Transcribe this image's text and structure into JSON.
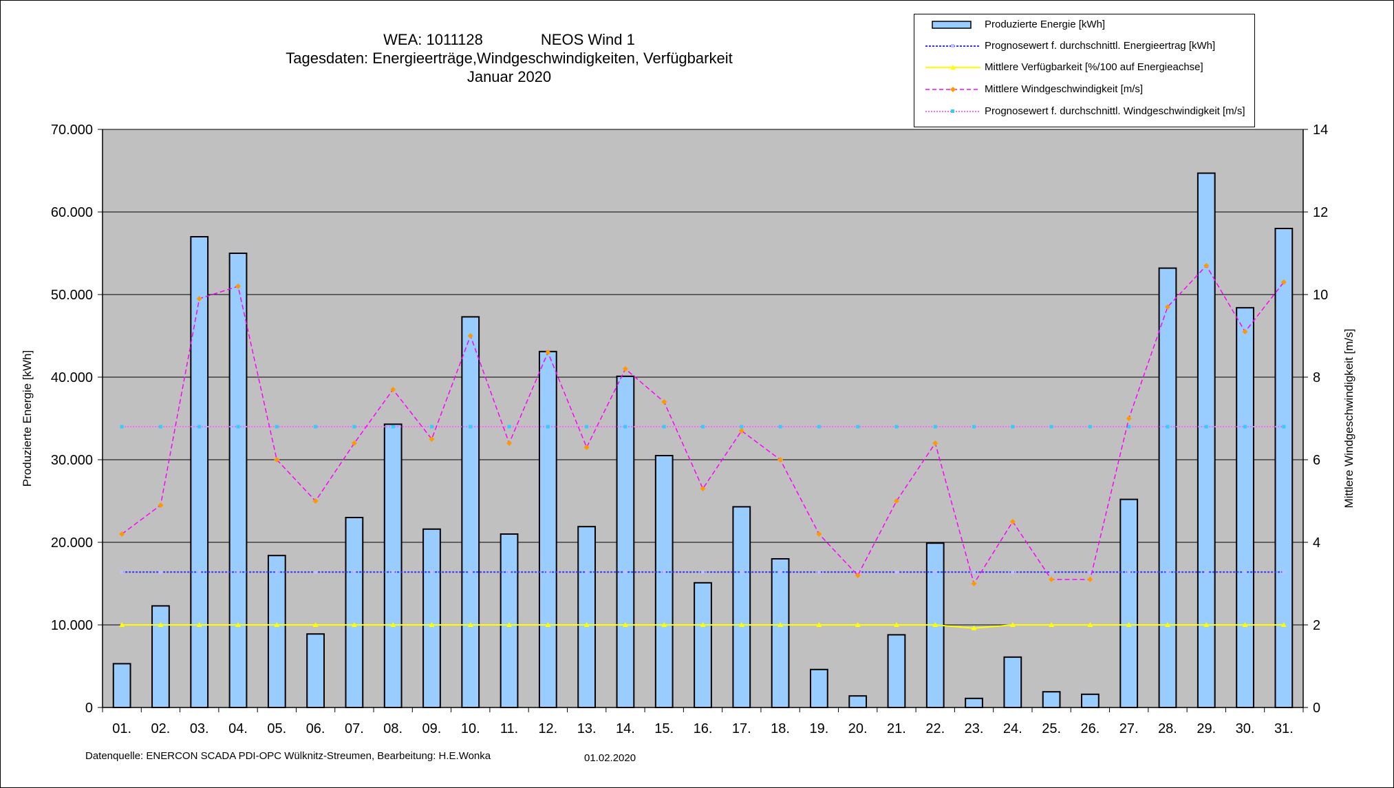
{
  "chart_data": {
    "type": "bar",
    "title_lines": {
      "wea": "WEA: 1011128",
      "name": "NEOS Wind 1",
      "line2": "Tagesdaten:  Energieerträge,Windgeschwindigkeiten,  Verfügbarkeit",
      "line3": "Januar 2020"
    },
    "ylabel": "Produzierte Energie [kWh]",
    "ylabel_right": "Mittlere Windgeschwindigkeit [m/s]",
    "ylim": [
      0,
      70000
    ],
    "ylim_right": [
      0,
      14
    ],
    "yticks": [
      "0",
      "10.000",
      "20.000",
      "30.000",
      "40.000",
      "50.000",
      "60.000",
      "70.000"
    ],
    "yticks_right": [
      "0",
      "2",
      "4",
      "6",
      "8",
      "10",
      "12",
      "14"
    ],
    "grid": true,
    "legend_position": "top-right",
    "categories": [
      "01.",
      "02.",
      "03.",
      "04.",
      "05.",
      "06.",
      "07.",
      "08.",
      "09.",
      "10.",
      "11.",
      "12.",
      "13.",
      "14.",
      "15.",
      "16.",
      "17.",
      "18.",
      "19.",
      "20.",
      "21.",
      "22.",
      "23.",
      "24.",
      "25.",
      "26.",
      "27.",
      "28.",
      "29.",
      "30.",
      "31."
    ],
    "series": [
      {
        "name": "Produzierte Energie [kWh]",
        "type": "bar",
        "axis": "left",
        "color": "#99ccff",
        "values": [
          5300,
          12300,
          57000,
          55000,
          18400,
          8900,
          23000,
          34300,
          21600,
          47300,
          21000,
          43100,
          21900,
          40100,
          30500,
          15100,
          24300,
          18000,
          4600,
          1400,
          8800,
          19900,
          1100,
          6100,
          1900,
          1600,
          25200,
          53200,
          64700,
          48400,
          58000
        ]
      },
      {
        "name": "Prognosewert f. durchschnittl. Energieertrag  [kWh]",
        "type": "line",
        "axis": "left",
        "color": "#3333ff",
        "values": [
          16400,
          16400,
          16400,
          16400,
          16400,
          16400,
          16400,
          16400,
          16400,
          16400,
          16400,
          16400,
          16400,
          16400,
          16400,
          16400,
          16400,
          16400,
          16400,
          16400,
          16400,
          16400,
          16400,
          16400,
          16400,
          16400,
          16400,
          16400,
          16400,
          16400,
          16400
        ]
      },
      {
        "name": "Mittlere Verfügbarkeit [%/100 auf Energieachse]",
        "type": "line",
        "axis": "right",
        "color": "#ffff00",
        "values": [
          2,
          2,
          2,
          2,
          2,
          2,
          2,
          2,
          2,
          2,
          2,
          2,
          2,
          2,
          2,
          2,
          2,
          2,
          2,
          2,
          2,
          2,
          1.92,
          2,
          2,
          2,
          2,
          2,
          2,
          2,
          2
        ]
      },
      {
        "name": "Mittlere Windgeschwindigkeit [m/s]",
        "type": "line",
        "axis": "right",
        "color": "#ff00ff",
        "marker_color": "#ff9900",
        "values": [
          4.2,
          4.9,
          9.9,
          10.2,
          6.0,
          5.0,
          6.4,
          7.7,
          6.5,
          9.0,
          6.4,
          8.6,
          6.3,
          8.2,
          7.4,
          5.3,
          6.7,
          6.0,
          4.2,
          3.2,
          5.0,
          6.4,
          3.0,
          4.5,
          3.1,
          3.1,
          7.0,
          9.7,
          10.7,
          9.1,
          10.3
        ]
      },
      {
        "name": "Prognosewert f. durchschnittl. Windgeschwindigkeit [m/s]",
        "type": "line",
        "axis": "right",
        "color": "#ff66ff",
        "marker_color": "#33ccff",
        "values": [
          6.8,
          6.8,
          6.8,
          6.8,
          6.8,
          6.8,
          6.8,
          6.8,
          6.8,
          6.8,
          6.8,
          6.8,
          6.8,
          6.8,
          6.8,
          6.8,
          6.8,
          6.8,
          6.8,
          6.8,
          6.8,
          6.8,
          6.8,
          6.8,
          6.8,
          6.8,
          6.8,
          6.8,
          6.8,
          6.8,
          6.8
        ]
      }
    ],
    "colors": {
      "plot_background": "#c0c0c0",
      "gridline": "#000000"
    }
  },
  "footer": {
    "source": "Datenquelle:  ENERCON  SCADA PDI-OPC Wülknitz-Streumen,     Bearbeitung:  H.E.Wonka",
    "date": "01.02.2020"
  }
}
